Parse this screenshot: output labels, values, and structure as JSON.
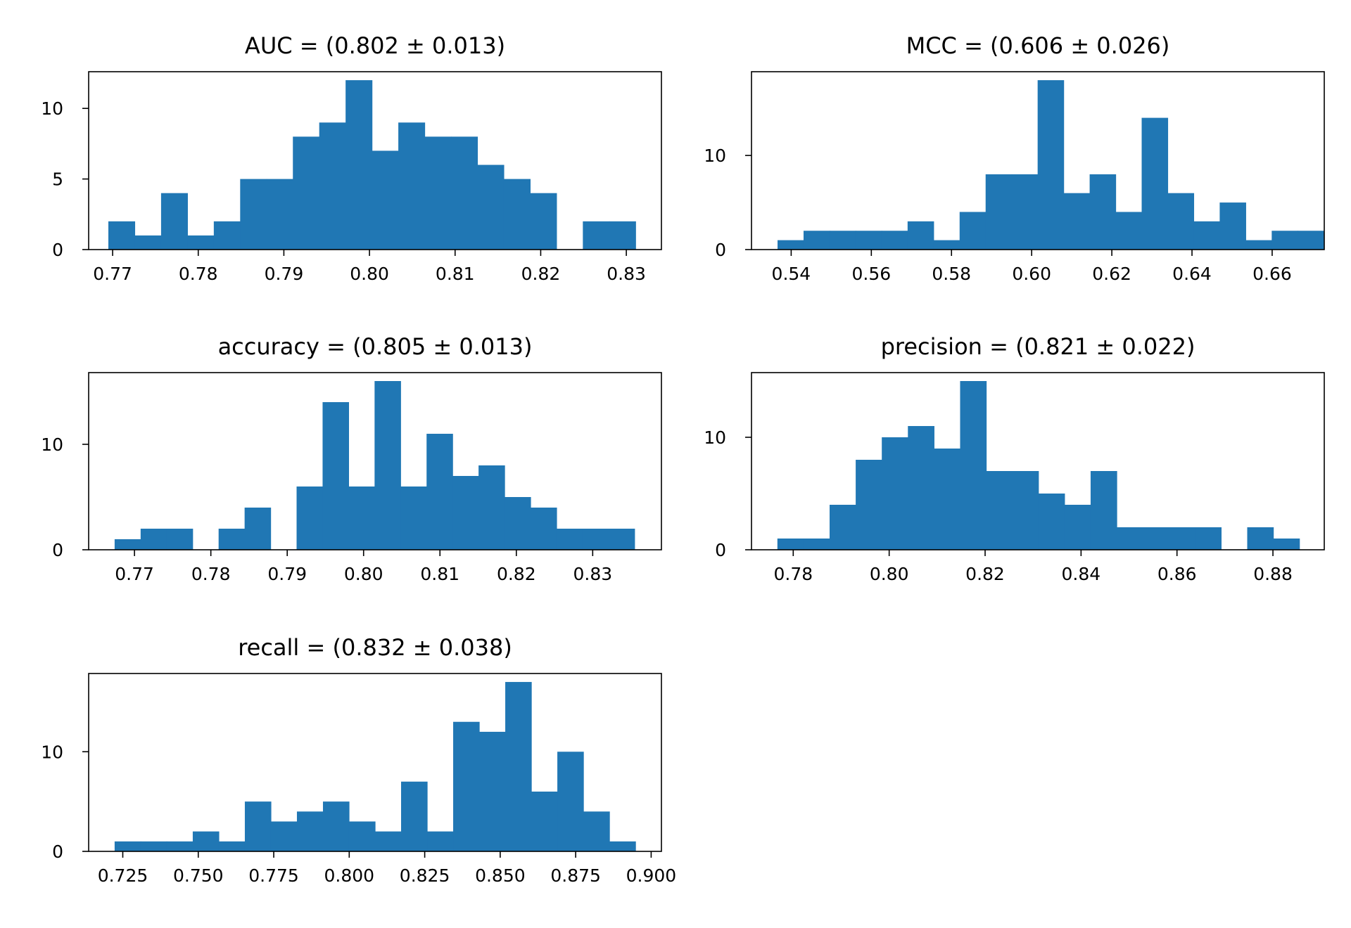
{
  "chart_data": [
    {
      "type": "histogram",
      "title": "AUC = (0.802 ± 0.013)",
      "xlabel": "",
      "ylabel": "",
      "bin_start": 0.7695,
      "bin_width": 0.003079,
      "counts": [
        2,
        1,
        4,
        1,
        2,
        5,
        5,
        8,
        9,
        12,
        7,
        9,
        8,
        8,
        6,
        5,
        4,
        0,
        2,
        2
      ],
      "xlim": [
        0.7672,
        0.8341
      ],
      "ylim": [
        0,
        12.6
      ],
      "xticks": [
        0.77,
        0.78,
        0.79,
        0.8,
        0.81,
        0.82,
        0.83
      ],
      "xtick_labels": [
        "0.77",
        "0.78",
        "0.79",
        "0.80",
        "0.81",
        "0.82",
        "0.83"
      ],
      "yticks": [
        0,
        5,
        10
      ],
      "ytick_labels": [
        "0",
        "5",
        "10"
      ],
      "color": "#2077b4"
    },
    {
      "type": "histogram",
      "title": "MCC = (0.606 ± 0.026)",
      "xlabel": "",
      "ylabel": "",
      "bin_start": 0.5366,
      "bin_width": 0.006489,
      "counts": [
        1,
        2,
        2,
        2,
        2,
        3,
        1,
        4,
        8,
        8,
        18,
        6,
        8,
        4,
        14,
        6,
        3,
        5,
        1,
        2,
        2
      ],
      "xlim": [
        0.5301,
        0.673
      ],
      "ylim": [
        0,
        18.9
      ],
      "xticks": [
        0.54,
        0.56,
        0.58,
        0.6,
        0.62,
        0.64,
        0.66
      ],
      "xtick_labels": [
        "0.54",
        "0.56",
        "0.58",
        "0.60",
        "0.62",
        "0.64",
        "0.66"
      ],
      "yticks": [
        0,
        10
      ],
      "ytick_labels": [
        "0",
        "10"
      ],
      "color": "#2077b4"
    },
    {
      "type": "histogram",
      "title": "accuracy = (0.805 ± 0.013)",
      "xlabel": "",
      "ylabel": "",
      "bin_start": 0.7674,
      "bin_width": 0.003404,
      "counts": [
        1,
        2,
        2,
        0,
        2,
        4,
        0,
        6,
        14,
        6,
        16,
        6,
        11,
        7,
        8,
        5,
        4,
        2,
        2,
        2
      ],
      "xlim": [
        0.764,
        0.839
      ],
      "ylim": [
        0,
        16.8
      ],
      "xticks": [
        0.77,
        0.78,
        0.79,
        0.8,
        0.81,
        0.82,
        0.83
      ],
      "xtick_labels": [
        "0.77",
        "0.78",
        "0.79",
        "0.80",
        "0.81",
        "0.82",
        "0.83"
      ],
      "yticks": [
        0,
        10
      ],
      "ytick_labels": [
        "0",
        "10"
      ],
      "color": "#2077b4"
    },
    {
      "type": "histogram",
      "title": "precision = (0.821 ± 0.022)",
      "xlabel": "",
      "ylabel": "",
      "bin_start": 0.7767,
      "bin_width": 0.005441,
      "counts": [
        1,
        1,
        4,
        8,
        10,
        11,
        9,
        15,
        7,
        7,
        5,
        4,
        7,
        2,
        2,
        2,
        2,
        0,
        2,
        1
      ],
      "xlim": [
        0.7713,
        0.8907
      ],
      "ylim": [
        0,
        15.75
      ],
      "xticks": [
        0.78,
        0.8,
        0.82,
        0.84,
        0.86,
        0.88
      ],
      "xtick_labels": [
        "0.78",
        "0.80",
        "0.82",
        "0.84",
        "0.86",
        "0.88"
      ],
      "yticks": [
        0,
        10
      ],
      "ytick_labels": [
        "0",
        "10"
      ],
      "color": "#2077b4"
    },
    {
      "type": "histogram",
      "title": "recall = (0.832 ± 0.038)",
      "xlabel": "",
      "ylabel": "",
      "bin_start": 0.7223,
      "bin_width": 0.008625,
      "counts": [
        1,
        1,
        1,
        2,
        1,
        5,
        3,
        4,
        5,
        3,
        2,
        7,
        2,
        13,
        12,
        17,
        6,
        10,
        4,
        1
      ],
      "xlim": [
        0.7137,
        0.9034
      ],
      "ylim": [
        0,
        17.85
      ],
      "xticks": [
        0.725,
        0.75,
        0.775,
        0.8,
        0.825,
        0.85,
        0.875,
        0.9
      ],
      "xtick_labels": [
        "0.725",
        "0.750",
        "0.775",
        "0.800",
        "0.825",
        "0.850",
        "0.875",
        "0.900"
      ],
      "yticks": [
        0,
        10
      ],
      "ytick_labels": [
        "0",
        "10"
      ],
      "color": "#2077b4"
    }
  ]
}
